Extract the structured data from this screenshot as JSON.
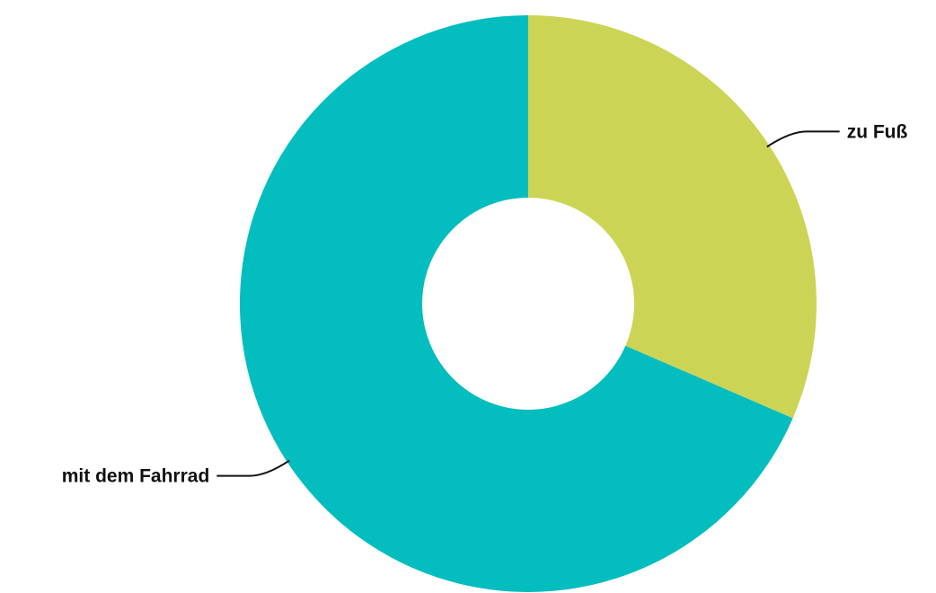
{
  "chart_data": {
    "type": "pie",
    "donut": true,
    "title": "",
    "slices": [
      {
        "label": "zu Fuß",
        "value": 31.5,
        "color": "#CCD455"
      },
      {
        "label": "mit dem Fahrrad",
        "value": 68.5,
        "color": "#03BDBF"
      }
    ],
    "legend": "none",
    "labels": "outside-with-leader-lines"
  }
}
